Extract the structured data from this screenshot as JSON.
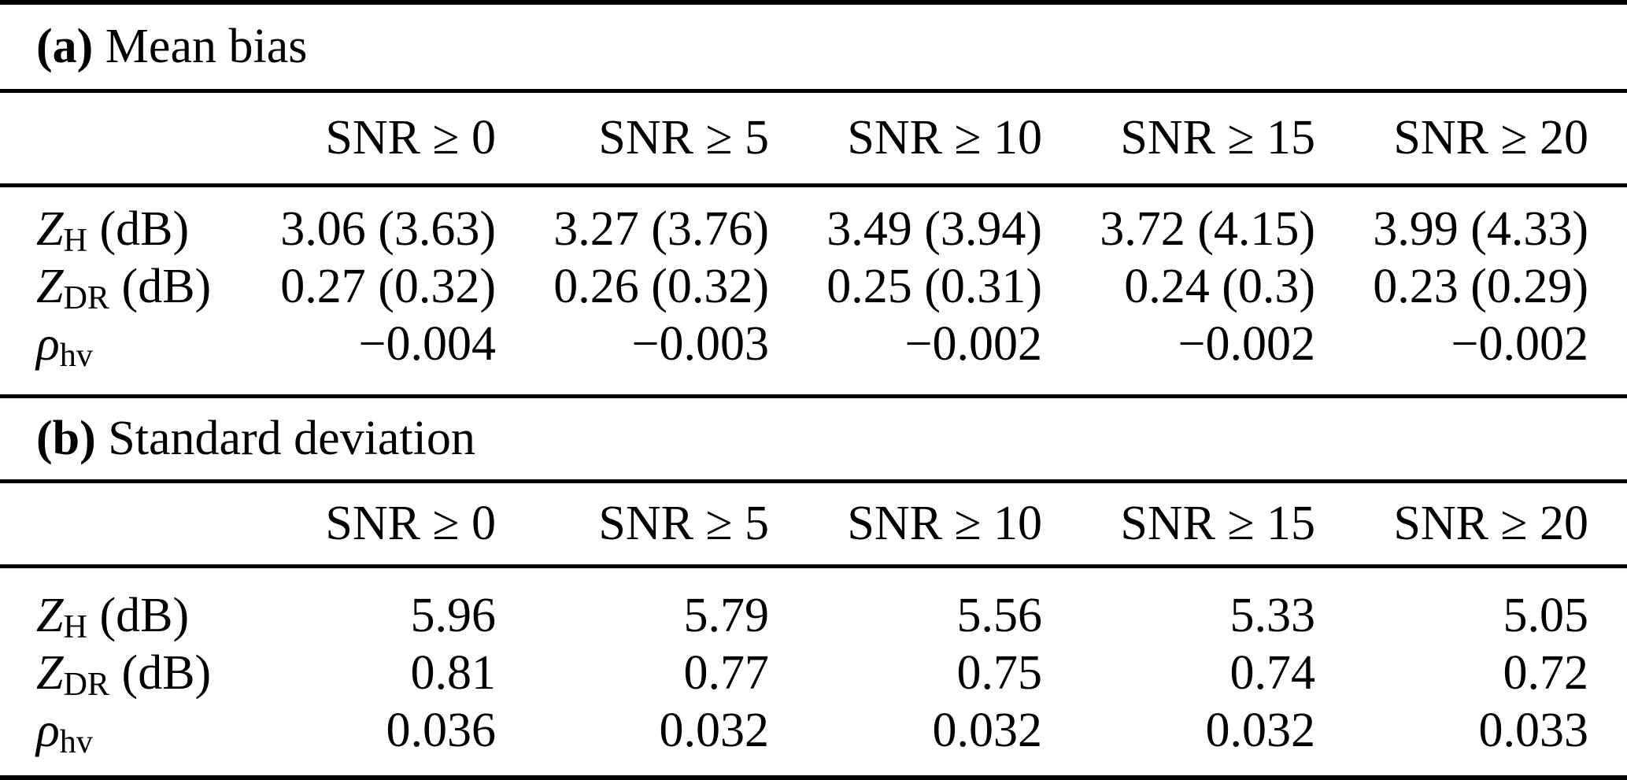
{
  "colors": {
    "text": "#000000",
    "background": "#ffffff"
  },
  "tables": [
    {
      "tag": "(a)",
      "title": " Mean bias",
      "columns": [
        "SNR ≥ 0",
        "SNR ≥ 5",
        "SNR ≥ 10",
        "SNR ≥ 15",
        "SNR ≥ 20"
      ],
      "rows": [
        {
          "label": {
            "base": "Z",
            "sub": "H",
            "suffix": " (dB)"
          },
          "values": [
            "3.06 (3.63)",
            "3.27 (3.76)",
            "3.49 (3.94)",
            "3.72 (4.15)",
            "3.99 (4.33)"
          ]
        },
        {
          "label": {
            "base": "Z",
            "sub": "DR",
            "suffix": " (dB)"
          },
          "values": [
            "0.27 (0.32)",
            "0.26 (0.32)",
            "0.25 (0.31)",
            "0.24 (0.3)",
            "0.23 (0.29)"
          ]
        },
        {
          "label": {
            "base": "ρ",
            "sub": "hv",
            "suffix": ""
          },
          "values": [
            "−0.004",
            "−0.003",
            "−0.002",
            "−0.002",
            "−0.002"
          ]
        }
      ]
    },
    {
      "tag": "(b)",
      "title": " Standard deviation",
      "columns": [
        "SNR ≥ 0",
        "SNR ≥ 5",
        "SNR ≥ 10",
        "SNR ≥ 15",
        "SNR ≥ 20"
      ],
      "rows": [
        {
          "label": {
            "base": "Z",
            "sub": "H",
            "suffix": " (dB)"
          },
          "values": [
            "5.96",
            "5.79",
            "5.56",
            "5.33",
            "5.05"
          ]
        },
        {
          "label": {
            "base": "Z",
            "sub": "DR",
            "suffix": " (dB)"
          },
          "values": [
            "0.81",
            "0.77",
            "0.75",
            "0.74",
            "0.72"
          ]
        },
        {
          "label": {
            "base": "ρ",
            "sub": "hv",
            "suffix": ""
          },
          "values": [
            "0.036",
            "0.032",
            "0.032",
            "0.032",
            "0.033"
          ]
        }
      ]
    }
  ]
}
